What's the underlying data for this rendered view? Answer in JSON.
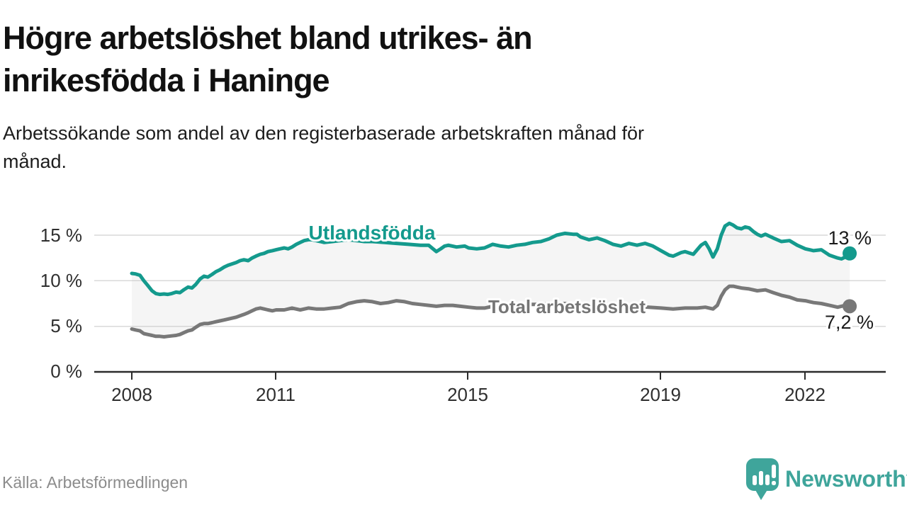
{
  "header": {
    "title": "Högre arbetslöshet bland utrikes- än\ninrikesfödda i Haninge",
    "subtitle": "Arbetssökande som andel av den registerbaserade arbetskraften månad för\nmånad."
  },
  "footer": {
    "source": "Källa: Arbetsförmedlingen",
    "brand": "Newsworthy",
    "brand_color": "#3fa59b"
  },
  "chart_data": {
    "type": "line",
    "title": "Högre arbetslöshet bland utrikes- än inrikesfödda i Haninge",
    "xlabel": "",
    "ylabel": "Arbetssökande som andel av den registerbaserade arbetskraften",
    "xlim": [
      2007.8,
      2023.6
    ],
    "ylim": [
      0,
      17
    ],
    "grid": "horizontal",
    "legend_position": "inline-labels",
    "yticks": [
      "15 %",
      "10 %",
      "5 %",
      "0 %"
    ],
    "xticks": [
      "2008",
      "2011",
      "2015",
      "2019",
      "2022"
    ],
    "xtick_years": [
      2008,
      2011,
      2015,
      2019,
      2022
    ],
    "band_between_series": true,
    "series": [
      {
        "name": "Utlandsfödda",
        "label": "Utlandsfödda",
        "color": "#149a8d",
        "end_label": "13 %",
        "end_value": 13.0,
        "points": [
          [
            2008.0,
            10.8
          ],
          [
            2008.08,
            10.75
          ],
          [
            2008.17,
            10.6
          ],
          [
            2008.25,
            10.0
          ],
          [
            2008.33,
            9.5
          ],
          [
            2008.42,
            8.9
          ],
          [
            2008.5,
            8.6
          ],
          [
            2008.58,
            8.5
          ],
          [
            2008.67,
            8.55
          ],
          [
            2008.75,
            8.5
          ],
          [
            2008.83,
            8.6
          ],
          [
            2008.92,
            8.75
          ],
          [
            2009.0,
            8.7
          ],
          [
            2009.08,
            9.0
          ],
          [
            2009.17,
            9.3
          ],
          [
            2009.25,
            9.2
          ],
          [
            2009.33,
            9.6
          ],
          [
            2009.42,
            10.2
          ],
          [
            2009.5,
            10.5
          ],
          [
            2009.58,
            10.4
          ],
          [
            2009.67,
            10.7
          ],
          [
            2009.75,
            11.0
          ],
          [
            2009.83,
            11.2
          ],
          [
            2009.92,
            11.5
          ],
          [
            2010.0,
            11.7
          ],
          [
            2010.17,
            12.0
          ],
          [
            2010.25,
            12.2
          ],
          [
            2010.33,
            12.3
          ],
          [
            2010.42,
            12.2
          ],
          [
            2010.5,
            12.5
          ],
          [
            2010.58,
            12.7
          ],
          [
            2010.67,
            12.9
          ],
          [
            2010.75,
            13.0
          ],
          [
            2010.83,
            13.2
          ],
          [
            2010.92,
            13.3
          ],
          [
            2011.0,
            13.4
          ],
          [
            2011.08,
            13.5
          ],
          [
            2011.17,
            13.6
          ],
          [
            2011.25,
            13.5
          ],
          [
            2011.33,
            13.7
          ],
          [
            2011.42,
            14.0
          ],
          [
            2011.5,
            14.2
          ],
          [
            2011.58,
            14.4
          ],
          [
            2011.67,
            14.5
          ],
          [
            2011.75,
            14.5
          ],
          [
            2011.83,
            14.4
          ],
          [
            2011.92,
            14.3
          ],
          [
            2012.0,
            14.2
          ],
          [
            2012.17,
            14.3
          ],
          [
            2012.33,
            14.4
          ],
          [
            2012.5,
            14.5
          ],
          [
            2012.67,
            14.4
          ],
          [
            2012.83,
            14.3
          ],
          [
            2013.0,
            14.3
          ],
          [
            2013.25,
            14.2
          ],
          [
            2013.5,
            14.1
          ],
          [
            2013.75,
            14.0
          ],
          [
            2014.0,
            13.9
          ],
          [
            2014.17,
            13.9
          ],
          [
            2014.33,
            13.2
          ],
          [
            2014.42,
            13.5
          ],
          [
            2014.5,
            13.8
          ],
          [
            2014.58,
            13.9
          ],
          [
            2014.75,
            13.7
          ],
          [
            2014.92,
            13.8
          ],
          [
            2015.0,
            13.6
          ],
          [
            2015.17,
            13.5
          ],
          [
            2015.33,
            13.6
          ],
          [
            2015.5,
            14.0
          ],
          [
            2015.67,
            13.8
          ],
          [
            2015.83,
            13.7
          ],
          [
            2016.0,
            13.9
          ],
          [
            2016.17,
            14.0
          ],
          [
            2016.33,
            14.2
          ],
          [
            2016.5,
            14.3
          ],
          [
            2016.67,
            14.6
          ],
          [
            2016.83,
            15.0
          ],
          [
            2017.0,
            15.2
          ],
          [
            2017.17,
            15.1
          ],
          [
            2017.25,
            15.1
          ],
          [
            2017.33,
            14.8
          ],
          [
            2017.5,
            14.5
          ],
          [
            2017.67,
            14.7
          ],
          [
            2017.83,
            14.4
          ],
          [
            2018.0,
            14.0
          ],
          [
            2018.17,
            13.8
          ],
          [
            2018.33,
            14.1
          ],
          [
            2018.5,
            13.9
          ],
          [
            2018.67,
            14.1
          ],
          [
            2018.83,
            13.8
          ],
          [
            2019.0,
            13.3
          ],
          [
            2019.17,
            12.8
          ],
          [
            2019.25,
            12.7
          ],
          [
            2019.42,
            13.1
          ],
          [
            2019.5,
            13.2
          ],
          [
            2019.67,
            12.9
          ],
          [
            2019.83,
            13.9
          ],
          [
            2019.92,
            14.2
          ],
          [
            2020.0,
            13.5
          ],
          [
            2020.08,
            12.6
          ],
          [
            2020.17,
            13.5
          ],
          [
            2020.25,
            15.0
          ],
          [
            2020.33,
            16.0
          ],
          [
            2020.42,
            16.3
          ],
          [
            2020.5,
            16.1
          ],
          [
            2020.58,
            15.8
          ],
          [
            2020.67,
            15.7
          ],
          [
            2020.75,
            15.9
          ],
          [
            2020.83,
            15.8
          ],
          [
            2020.92,
            15.4
          ],
          [
            2021.0,
            15.1
          ],
          [
            2021.08,
            14.9
          ],
          [
            2021.17,
            15.1
          ],
          [
            2021.33,
            14.7
          ],
          [
            2021.5,
            14.3
          ],
          [
            2021.67,
            14.4
          ],
          [
            2021.83,
            13.9
          ],
          [
            2022.0,
            13.5
          ],
          [
            2022.17,
            13.3
          ],
          [
            2022.33,
            13.4
          ],
          [
            2022.5,
            12.8
          ],
          [
            2022.67,
            12.5
          ],
          [
            2022.75,
            12.4
          ],
          [
            2022.83,
            12.6
          ],
          [
            2022.92,
            13.0
          ]
        ]
      },
      {
        "name": "Total arbetslöshet",
        "label": "Total arbetslöshet",
        "color": "#787878",
        "end_label": "7,2 %",
        "end_value": 7.2,
        "points": [
          [
            2008.0,
            4.7
          ],
          [
            2008.08,
            4.6
          ],
          [
            2008.17,
            4.5
          ],
          [
            2008.25,
            4.2
          ],
          [
            2008.33,
            4.1
          ],
          [
            2008.42,
            4.0
          ],
          [
            2008.5,
            3.9
          ],
          [
            2008.58,
            3.9
          ],
          [
            2008.67,
            3.85
          ],
          [
            2008.75,
            3.9
          ],
          [
            2008.83,
            3.95
          ],
          [
            2008.92,
            4.0
          ],
          [
            2009.0,
            4.1
          ],
          [
            2009.08,
            4.3
          ],
          [
            2009.17,
            4.5
          ],
          [
            2009.25,
            4.6
          ],
          [
            2009.33,
            4.9
          ],
          [
            2009.42,
            5.2
          ],
          [
            2009.5,
            5.3
          ],
          [
            2009.58,
            5.3
          ],
          [
            2009.67,
            5.4
          ],
          [
            2009.75,
            5.5
          ],
          [
            2009.83,
            5.6
          ],
          [
            2009.92,
            5.7
          ],
          [
            2010.0,
            5.8
          ],
          [
            2010.17,
            6.0
          ],
          [
            2010.33,
            6.3
          ],
          [
            2010.42,
            6.5
          ],
          [
            2010.5,
            6.7
          ],
          [
            2010.58,
            6.9
          ],
          [
            2010.67,
            7.0
          ],
          [
            2010.75,
            6.9
          ],
          [
            2010.83,
            6.8
          ],
          [
            2010.92,
            6.7
          ],
          [
            2011.0,
            6.8
          ],
          [
            2011.17,
            6.8
          ],
          [
            2011.33,
            7.0
          ],
          [
            2011.5,
            6.8
          ],
          [
            2011.67,
            7.0
          ],
          [
            2011.83,
            6.9
          ],
          [
            2012.0,
            6.9
          ],
          [
            2012.17,
            7.0
          ],
          [
            2012.33,
            7.1
          ],
          [
            2012.5,
            7.5
          ],
          [
            2012.67,
            7.7
          ],
          [
            2012.83,
            7.8
          ],
          [
            2013.0,
            7.7
          ],
          [
            2013.17,
            7.5
          ],
          [
            2013.33,
            7.6
          ],
          [
            2013.5,
            7.8
          ],
          [
            2013.67,
            7.7
          ],
          [
            2013.83,
            7.5
          ],
          [
            2014.0,
            7.4
          ],
          [
            2014.17,
            7.3
          ],
          [
            2014.33,
            7.2
          ],
          [
            2014.5,
            7.3
          ],
          [
            2014.67,
            7.3
          ],
          [
            2014.83,
            7.2
          ],
          [
            2015.0,
            7.1
          ],
          [
            2015.17,
            7.0
          ],
          [
            2015.33,
            7.0
          ],
          [
            2015.5,
            7.2
          ],
          [
            2015.67,
            7.2
          ],
          [
            2015.83,
            7.3
          ],
          [
            2016.0,
            7.3
          ],
          [
            2016.25,
            7.4
          ],
          [
            2016.5,
            7.4
          ],
          [
            2016.75,
            7.5
          ],
          [
            2017.0,
            7.5
          ],
          [
            2017.25,
            7.4
          ],
          [
            2017.5,
            7.4
          ],
          [
            2017.75,
            7.3
          ],
          [
            2018.0,
            7.2
          ],
          [
            2018.25,
            7.2
          ],
          [
            2018.5,
            7.2
          ],
          [
            2018.75,
            7.1
          ],
          [
            2019.0,
            7.0
          ],
          [
            2019.25,
            6.9
          ],
          [
            2019.5,
            7.0
          ],
          [
            2019.75,
            7.0
          ],
          [
            2019.92,
            7.1
          ],
          [
            2020.0,
            7.0
          ],
          [
            2020.08,
            6.9
          ],
          [
            2020.17,
            7.3
          ],
          [
            2020.25,
            8.3
          ],
          [
            2020.33,
            9.0
          ],
          [
            2020.42,
            9.4
          ],
          [
            2020.5,
            9.4
          ],
          [
            2020.58,
            9.3
          ],
          [
            2020.67,
            9.2
          ],
          [
            2020.83,
            9.1
          ],
          [
            2021.0,
            8.9
          ],
          [
            2021.17,
            9.0
          ],
          [
            2021.33,
            8.7
          ],
          [
            2021.5,
            8.4
          ],
          [
            2021.67,
            8.2
          ],
          [
            2021.83,
            7.9
          ],
          [
            2022.0,
            7.8
          ],
          [
            2022.17,
            7.6
          ],
          [
            2022.33,
            7.5
          ],
          [
            2022.5,
            7.3
          ],
          [
            2022.67,
            7.1
          ],
          [
            2022.83,
            7.3
          ],
          [
            2022.92,
            7.2
          ]
        ]
      }
    ]
  }
}
